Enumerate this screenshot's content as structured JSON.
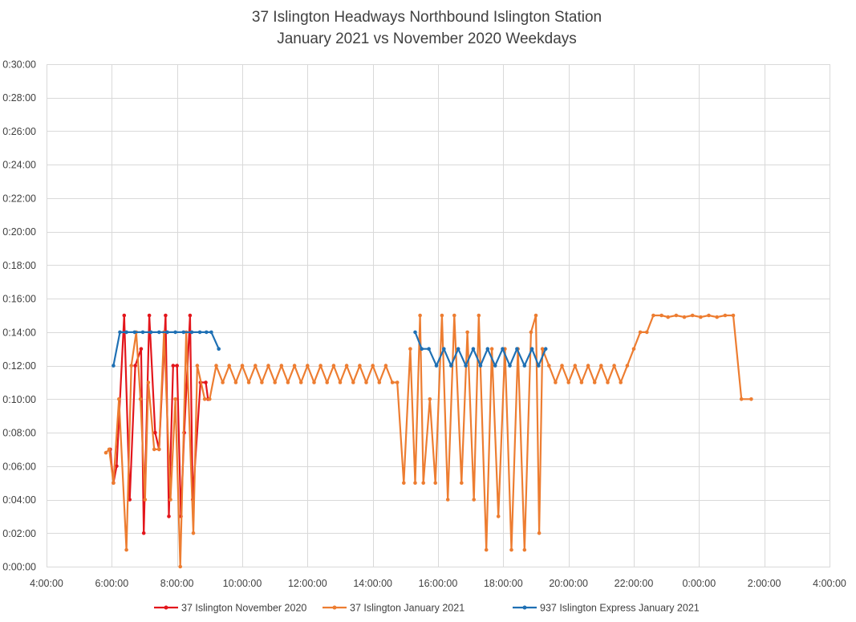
{
  "chart_data": {
    "type": "line",
    "title": [
      "37 Islington Headways Northbound Islington Station",
      "January 2021 vs November 2020 Weekdays"
    ],
    "x_unit": "hours from midnight (values above 24 wrap to next day)",
    "y_unit": "headway minutes",
    "xlim": [
      4,
      28
    ],
    "ylim": [
      0,
      30
    ],
    "x_tick_values": [
      4,
      6,
      8,
      10,
      12,
      14,
      16,
      18,
      20,
      22,
      24,
      26,
      28
    ],
    "x_tick_labels": [
      "4:00:00",
      "6:00:00",
      "8:00:00",
      "10:00:00",
      "12:00:00",
      "14:00:00",
      "16:00:00",
      "18:00:00",
      "20:00:00",
      "22:00:00",
      "0:00:00",
      "2:00:00",
      "4:00:00"
    ],
    "y_tick_values": [
      0,
      2,
      4,
      6,
      8,
      10,
      12,
      14,
      16,
      18,
      20,
      22,
      24,
      26,
      28,
      30
    ],
    "y_tick_labels": [
      "0:00:00",
      "0:02:00",
      "0:04:00",
      "0:06:00",
      "0:08:00",
      "0:10:00",
      "0:12:00",
      "0:14:00",
      "0:16:00",
      "0:18:00",
      "0:20:00",
      "0:22:00",
      "0:24:00",
      "0:26:00",
      "0:28:00",
      "0:30:00"
    ],
    "grid": true,
    "legend_position": "bottom",
    "series": [
      {
        "name": "37 Islington November 2020",
        "color": "#e3161c",
        "x": [
          5.95,
          6.05,
          6.15,
          6.38,
          6.55,
          6.72,
          6.9,
          6.98,
          7.15,
          7.33,
          7.45,
          7.65,
          7.75,
          7.88,
          8.0,
          8.12,
          8.22,
          8.4,
          8.48,
          8.72,
          8.88,
          8.95
        ],
        "y": [
          7.0,
          5.0,
          6.0,
          15.0,
          4.0,
          12.0,
          13.0,
          2.0,
          15.0,
          8.0,
          7.0,
          15.0,
          3.0,
          12.0,
          12.0,
          3.0,
          8.0,
          15.0,
          4.0,
          11.0,
          11.0,
          10.0
        ]
      },
      {
        "name": "37 Islington January 2021",
        "color": "#ed7d31",
        "x": [
          5.82,
          5.92,
          6.05,
          6.22,
          6.45,
          6.6,
          6.75,
          6.88,
          7.02,
          7.12,
          7.3,
          7.45,
          7.6,
          7.8,
          7.95,
          8.1,
          8.28,
          8.5,
          8.62,
          8.85,
          9.0,
          9.2,
          9.4,
          9.6,
          9.8,
          10.0,
          10.2,
          10.4,
          10.6,
          10.8,
          11.0,
          11.2,
          11.4,
          11.6,
          11.8,
          12.0,
          12.2,
          12.4,
          12.6,
          12.8,
          13.0,
          13.2,
          13.4,
          13.6,
          13.8,
          14.0,
          14.2,
          14.4,
          14.6,
          14.75,
          14.95,
          15.15,
          15.3,
          15.45,
          15.55,
          15.75,
          15.92,
          16.12,
          16.3,
          16.5,
          16.72,
          16.9,
          17.1,
          17.25,
          17.48,
          17.65,
          17.85,
          18.05,
          18.25,
          18.45,
          18.65,
          18.85,
          19.0,
          19.1,
          19.2,
          19.4,
          19.6,
          19.8,
          20.0,
          20.2,
          20.4,
          20.6,
          20.8,
          21.0,
          21.2,
          21.4,
          21.6,
          21.8,
          22.0,
          22.2,
          22.4,
          22.6,
          22.85,
          23.05,
          23.3,
          23.55,
          23.8,
          24.05,
          24.3,
          24.55,
          24.8,
          25.05,
          25.3,
          25.6
        ],
        "y": [
          6.8,
          7.0,
          5.0,
          10.0,
          1.0,
          12.0,
          14.0,
          10.0,
          4.0,
          11.0,
          7.0,
          7.0,
          14.0,
          4.0,
          10.0,
          0.0,
          14.0,
          2.0,
          12.0,
          10.0,
          10.0,
          12.0,
          11.0,
          12.0,
          11.0,
          12.0,
          11.0,
          12.0,
          11.0,
          12.0,
          11.0,
          12.0,
          11.0,
          12.0,
          11.0,
          12.0,
          11.0,
          12.0,
          11.0,
          12.0,
          11.0,
          12.0,
          11.0,
          12.0,
          11.0,
          12.0,
          11.0,
          12.0,
          11.0,
          11.0,
          5.0,
          13.0,
          5.0,
          15.0,
          5.0,
          10.0,
          5.0,
          15.0,
          4.0,
          15.0,
          5.0,
          14.0,
          4.0,
          15.0,
          1.0,
          13.0,
          3.0,
          13.0,
          1.0,
          13.0,
          1.0,
          14.0,
          15.0,
          2.0,
          13.0,
          12.0,
          11.0,
          12.0,
          11.0,
          12.0,
          11.0,
          12.0,
          11.0,
          12.0,
          11.0,
          12.0,
          11.0,
          12.0,
          13.0,
          14.0,
          14.0,
          15.0,
          15.0,
          14.9,
          15.0,
          14.9,
          15.0,
          14.9,
          15.0,
          14.9,
          15.0,
          15.0,
          10.0,
          10.0
        ]
      },
      {
        "name": "937 Islington Express January 2021",
        "color": "#1f70b4",
        "x": [
          6.05,
          6.25,
          6.45,
          6.7,
          6.95,
          7.2,
          7.45,
          7.7,
          7.95,
          8.2,
          8.45,
          8.7,
          8.9,
          9.05,
          9.28,
          15.3,
          15.5,
          15.72,
          15.95,
          16.18,
          16.4,
          16.62,
          16.85,
          17.08,
          17.3,
          17.52,
          17.75,
          17.98,
          18.2,
          18.42,
          18.65,
          18.88,
          19.08,
          19.3
        ],
        "y": [
          12.0,
          14.0,
          14.0,
          14.0,
          14.0,
          14.0,
          14.0,
          14.0,
          14.0,
          14.0,
          14.0,
          14.0,
          14.0,
          14.0,
          13.0,
          14.0,
          13.0,
          13.0,
          12.0,
          13.0,
          12.0,
          13.0,
          12.0,
          13.0,
          12.0,
          13.0,
          12.0,
          13.0,
          12.0,
          13.0,
          12.0,
          13.0,
          12.0,
          13.0
        ]
      }
    ]
  }
}
